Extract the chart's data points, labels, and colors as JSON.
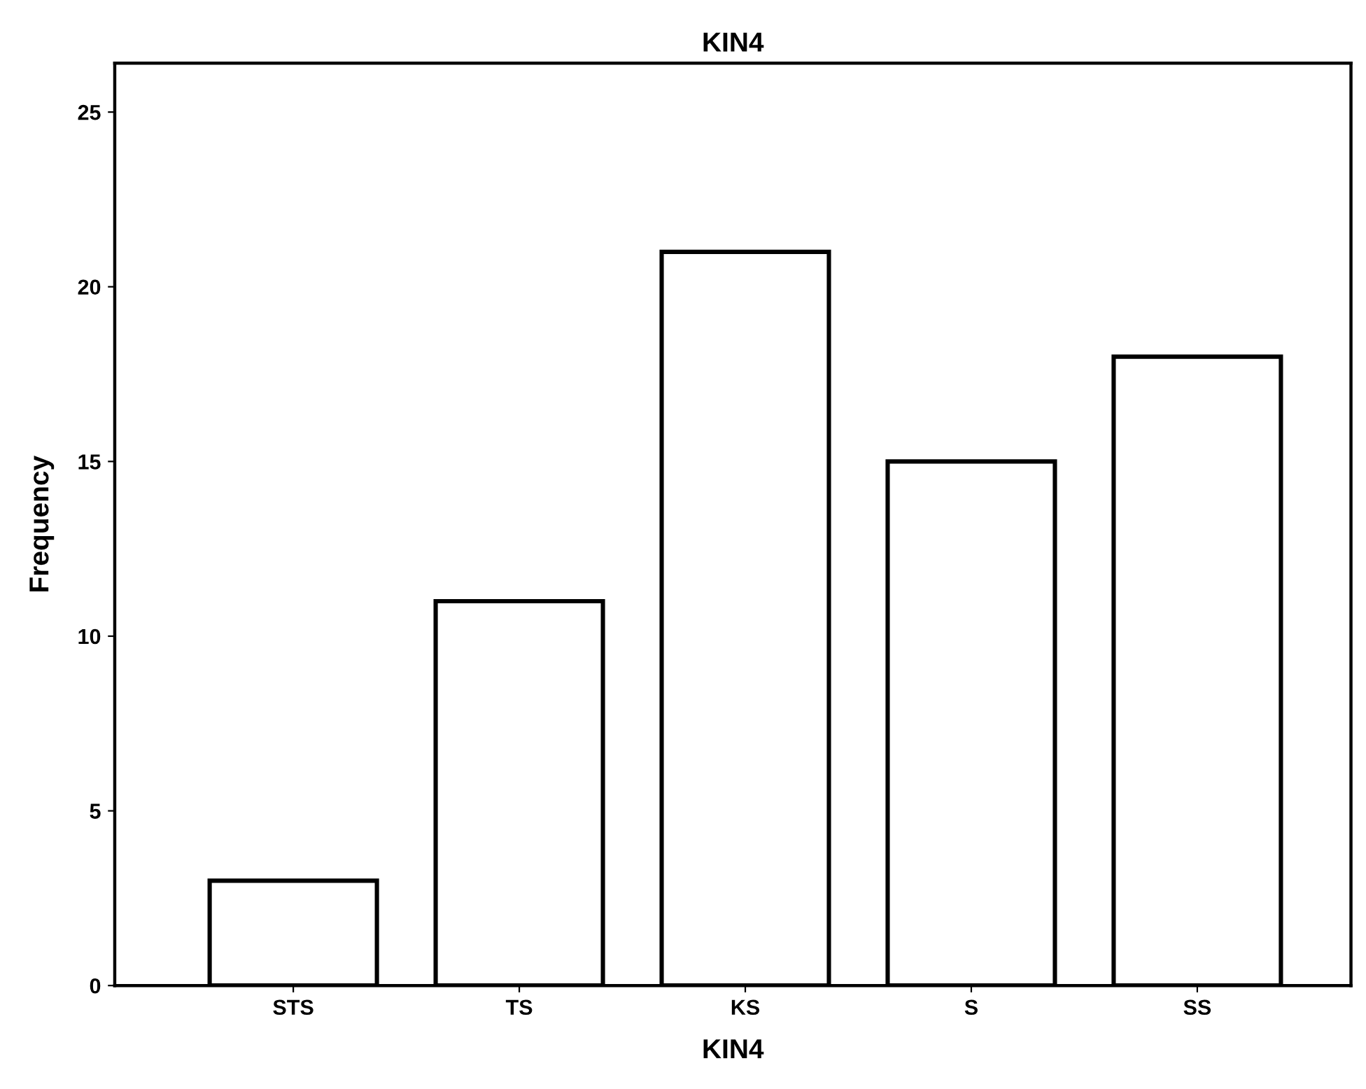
{
  "chart_data": {
    "type": "bar",
    "title": "KIN4",
    "xlabel": "KIN4",
    "ylabel": "Frequency",
    "categories": [
      "STS",
      "TS",
      "KS",
      "S",
      "SS"
    ],
    "values": [
      3,
      11,
      21,
      15,
      18
    ],
    "color": "#ffffff",
    "ylim": [
      0,
      26.4
    ],
    "yticks": [
      0,
      5,
      10,
      15,
      20,
      25
    ],
    "grid": false
  }
}
